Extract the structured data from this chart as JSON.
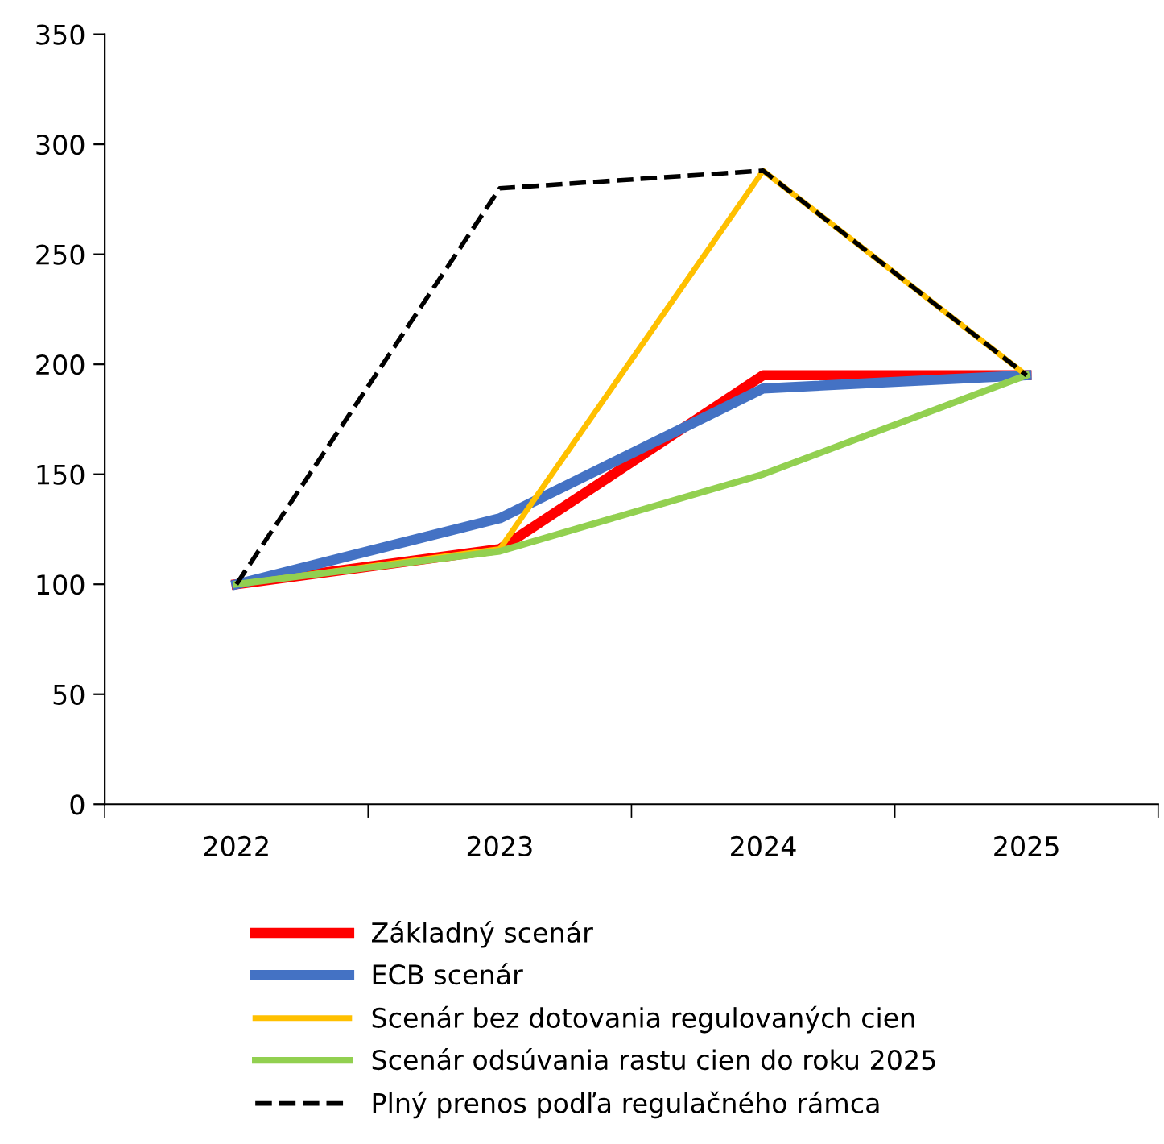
{
  "chart_data": {
    "type": "line",
    "categories": [
      "2022",
      "2023",
      "2024",
      "2025"
    ],
    "series": [
      {
        "name": "Základný scenár",
        "color": "#ff0000",
        "values": [
          100,
          116,
          195,
          195
        ]
      },
      {
        "name": "ECB scenár",
        "color": "#4472c4",
        "values": [
          100,
          130,
          189,
          195
        ]
      },
      {
        "name": "Scenár bez dotovania regulovaných cien",
        "color": "#ffc000",
        "values": [
          100,
          116,
          288,
          195
        ]
      },
      {
        "name": "Scenár odsúvania rastu cien do roku 2025",
        "color": "#92d050",
        "values": [
          100,
          115,
          150,
          195
        ]
      },
      {
        "name": "Plný prenos podľa regulačného rámca",
        "color": "#000000",
        "values": [
          100,
          280,
          288,
          195
        ],
        "line_style": "dashed"
      }
    ],
    "ylim": [
      0,
      350
    ],
    "yticks": [
      0,
      50,
      100,
      150,
      200,
      250,
      300,
      350
    ],
    "grid": false,
    "legend": "bottom",
    "marker": "none",
    "line_style": "solid"
  }
}
